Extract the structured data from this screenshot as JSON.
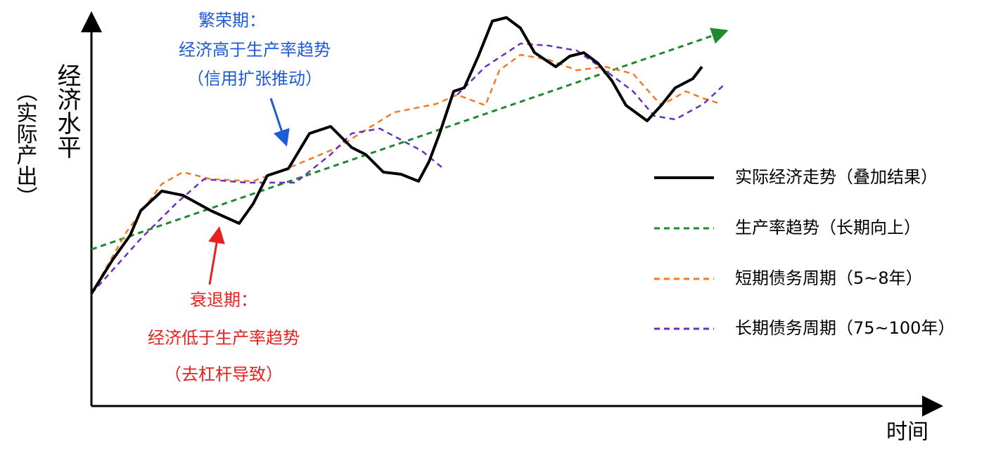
{
  "axes": {
    "y_label": "经济水平",
    "y_sublabel": "（实际产出）",
    "x_label": "时间"
  },
  "annotations": {
    "boom": {
      "title": "繁荣期：",
      "line1": "经济高于生产率趋势",
      "line2": "（信用扩张推动）"
    },
    "recession": {
      "title": "衰退期：",
      "line1": "经济低于生产率趋势",
      "line2": "（去杠杆导致）"
    }
  },
  "legend": [
    "实际经济走势（叠加结果）",
    "生产率趋势（长期向上）",
    "短期债务周期（5~8年）",
    "长期债务周期（75~100年）"
  ]
}
